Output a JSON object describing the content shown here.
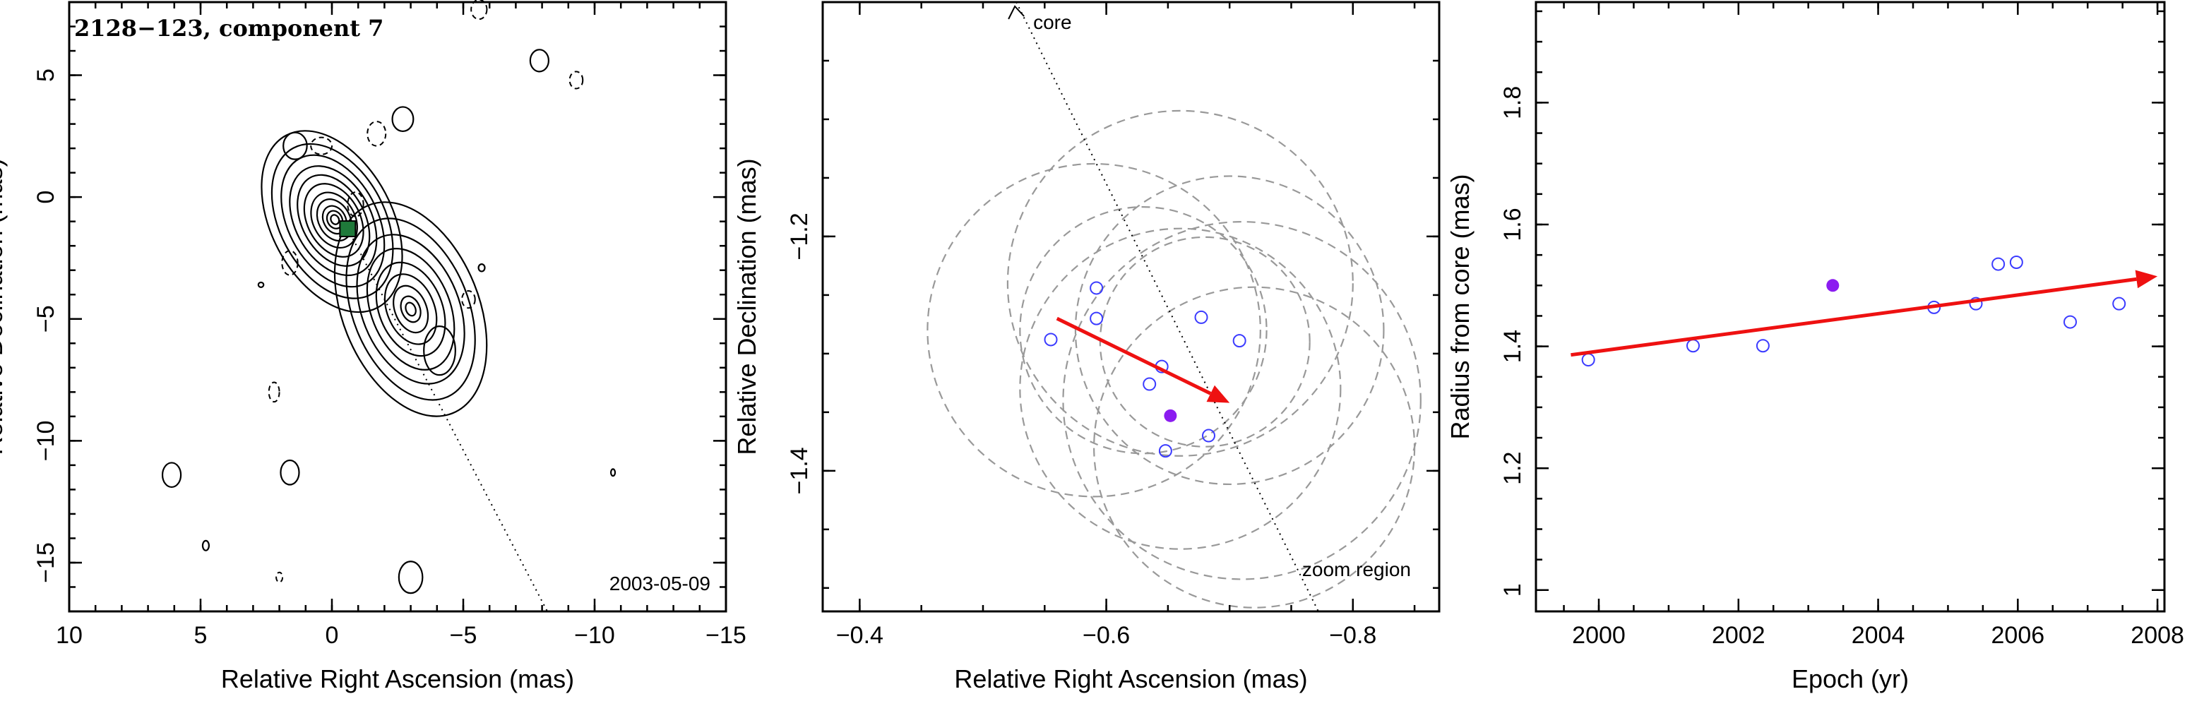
{
  "colors": {
    "open_marker": "#3b3bff",
    "filled_marker": "#8b1cf0",
    "arrow": "#ee1111",
    "beam": "#999999",
    "component_box": "#1f7a3a"
  },
  "chart_data": [
    {
      "type": "contour",
      "title": "2128−123, component 7",
      "date": "2003-05-09",
      "xlabel": "Relative Right Ascension (mas)",
      "ylabel": "Relative Declination (mas)",
      "xlim": [
        10,
        -15
      ],
      "ylim": [
        -17,
        8
      ],
      "xticks": [
        10,
        5,
        0,
        -5,
        -10,
        -15
      ],
      "xtick_labels": [
        "10",
        "5",
        "0",
        "−5",
        "−10",
        "−15"
      ],
      "yticks": [
        5,
        0,
        -5,
        -10,
        -15
      ],
      "ytick_labels": [
        "5",
        "0",
        "−5",
        "−10",
        "−15"
      ],
      "component_position": [
        -0.6,
        -1.3
      ],
      "core_direction_line": [
        [
          -0.6,
          -1.3
        ],
        [
          -8.2,
          -17
        ]
      ]
    },
    {
      "type": "scatter",
      "xlabel": "Relative Right Ascension (mas)",
      "ylabel": "Relative Declination (mas)",
      "xlim": [
        -0.37,
        -0.87
      ],
      "ylim": [
        -1.52,
        -1.0
      ],
      "xticks": [
        -0.4,
        -0.6,
        -0.8
      ],
      "xtick_labels": [
        "−0.4",
        "−0.6",
        "−0.8"
      ],
      "yticks": [
        -1.2,
        -1.4
      ],
      "ytick_labels": [
        "−1.2",
        "−1.4"
      ],
      "annotations": {
        "core": "core",
        "zoom": "zoom region"
      },
      "core_line": [
        [
          -0.527,
          -1.0
        ],
        [
          -0.772,
          -1.52
        ]
      ],
      "points_open": [
        [
          -0.555,
          -1.288
        ],
        [
          -0.592,
          -1.244
        ],
        [
          -0.592,
          -1.27
        ],
        [
          -0.635,
          -1.326
        ],
        [
          -0.645,
          -1.311
        ],
        [
          -0.677,
          -1.269
        ],
        [
          -0.708,
          -1.289
        ],
        [
          -0.648,
          -1.383
        ],
        [
          -0.683,
          -1.37
        ]
      ],
      "point_filled": [
        -0.652,
        -1.353
      ],
      "motion_vector": {
        "from": [
          -0.56,
          -1.27
        ],
        "to": [
          -0.7,
          -1.342
        ]
      },
      "beam_circles": [
        {
          "center": [
            -0.59,
            -1.28
          ],
          "radius": 0.135
        },
        {
          "center": [
            -0.66,
            -1.24
          ],
          "radius": 0.14
        },
        {
          "center": [
            -0.7,
            -1.28
          ],
          "radius": 0.125
        },
        {
          "center": [
            -0.66,
            -1.33
          ],
          "radius": 0.13
        },
        {
          "center": [
            -0.71,
            -1.34
          ],
          "radius": 0.145
        },
        {
          "center": [
            -0.63,
            -1.28
          ],
          "radius": 0.1
        },
        {
          "center": [
            -0.72,
            -1.38
          ],
          "radius": 0.13
        },
        {
          "center": [
            -0.68,
            -1.29
          ],
          "radius": 0.085
        }
      ]
    },
    {
      "type": "scatter",
      "xlabel": "Epoch (yr)",
      "ylabel": "Radius from core (mas)",
      "xlim": [
        1999.1,
        2008.1
      ],
      "ylim": [
        0.965,
        1.965
      ],
      "xticks": [
        2000,
        2002,
        2004,
        2006,
        2008
      ],
      "xtick_labels": [
        "2000",
        "2002",
        "2004",
        "2006",
        "2008"
      ],
      "yticks": [
        1.0,
        1.2,
        1.4,
        1.6,
        1.8
      ],
      "ytick_labels": [
        "1",
        "1.2",
        "1.4",
        "1.6",
        "1.8"
      ],
      "x": [
        1999.85,
        2001.35,
        2002.35,
        2004.8,
        2005.4,
        2005.72,
        2005.98,
        2006.75,
        2007.45
      ],
      "y": [
        1.378,
        1.401,
        1.401,
        1.464,
        1.47,
        1.535,
        1.538,
        1.44,
        1.47
      ],
      "point_filled": [
        2003.35,
        1.5
      ],
      "fit_line": {
        "from": [
          1999.6,
          1.386
        ],
        "to": [
          2008.0,
          1.515
        ]
      }
    }
  ]
}
